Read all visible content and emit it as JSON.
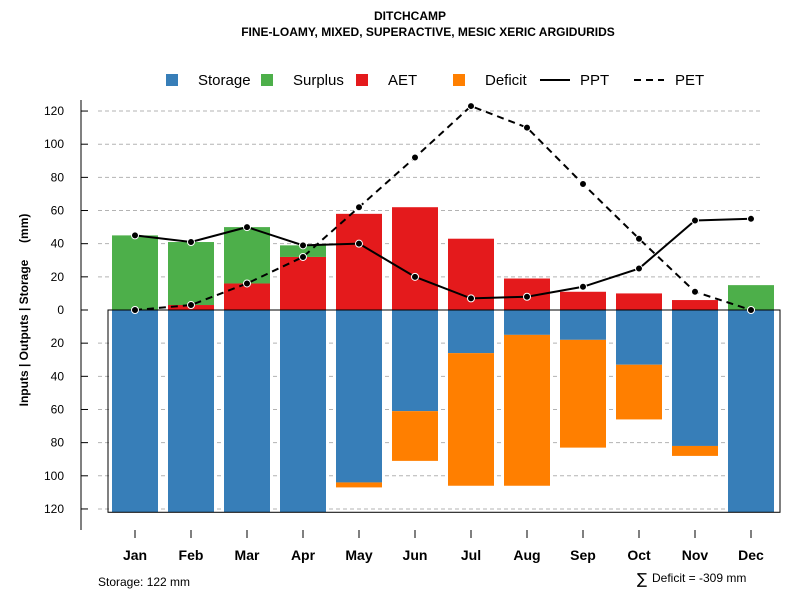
{
  "chart_data": {
    "type": "bar",
    "title": "DITCHCAMP",
    "subtitle": "FINE-LOAMY, MIXED, SUPERACTIVE, MESIC XERIC ARGIDURIDS",
    "ylabel": "Inputs | Outputs | Storage     (mm)",
    "ylim": [
      -122,
      130
    ],
    "yticks": [
      120,
      100,
      80,
      60,
      40,
      20,
      0,
      20,
      40,
      60,
      80,
      100,
      120
    ],
    "ytick_values": [
      120,
      100,
      80,
      60,
      40,
      20,
      0,
      -20,
      -40,
      -60,
      -80,
      -100,
      -120
    ],
    "grid": true,
    "legend_position": "top",
    "categories": [
      "Jan",
      "Feb",
      "Mar",
      "Apr",
      "May",
      "Jun",
      "Jul",
      "Aug",
      "Sep",
      "Oct",
      "Nov",
      "Dec"
    ],
    "series": [
      {
        "name": "Storage",
        "kind": "bar",
        "color": "#377eb8",
        "values": [
          -122,
          -122,
          -122,
          -122,
          -104,
          -61,
          -26,
          -15,
          -18,
          -33,
          -82,
          -122
        ]
      },
      {
        "name": "Surplus",
        "kind": "bar",
        "color": "#4daf4a",
        "values": [
          45,
          38,
          34,
          7,
          0,
          0,
          0,
          0,
          0,
          0,
          0,
          15
        ]
      },
      {
        "name": "AET",
        "kind": "bar",
        "color": "#e41a1c",
        "values": [
          0,
          3,
          16,
          32,
          58,
          62,
          43,
          19,
          11,
          10,
          6,
          0
        ]
      },
      {
        "name": "Deficit",
        "kind": "bar",
        "color": "#ff7f00",
        "values": [
          0,
          0,
          0,
          0,
          -3,
          -30,
          -80,
          -91,
          -65,
          -33,
          -6,
          0
        ]
      },
      {
        "name": "PPT",
        "kind": "line",
        "style": "solid",
        "color": "#000000",
        "values": [
          45,
          41,
          50,
          39,
          40,
          20,
          7,
          8,
          14,
          25,
          54,
          55
        ]
      },
      {
        "name": "PET",
        "kind": "line",
        "style": "dashed",
        "color": "#000000",
        "values": [
          0,
          3,
          16,
          32,
          62,
          92,
          123,
          110,
          76,
          43,
          11,
          0
        ]
      }
    ],
    "footer_left": "Storage: 122 mm",
    "footer_right_symbol": "∑",
    "footer_right": "Deficit = -309 mm"
  }
}
